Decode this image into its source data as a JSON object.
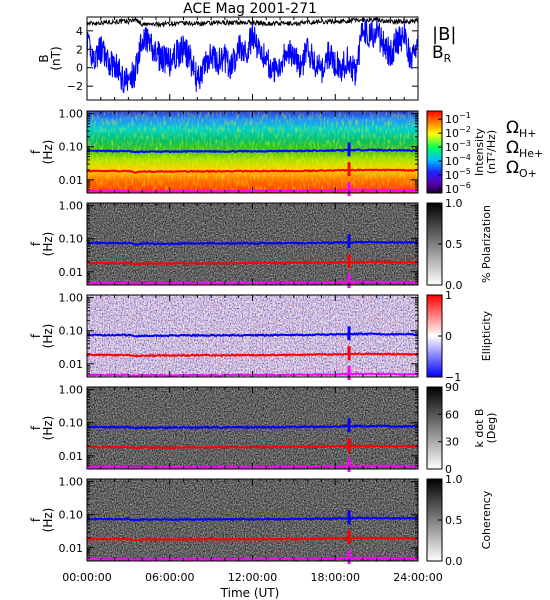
{
  "chart_data": {
    "type": "line",
    "title": "ACE Mag 2001-271",
    "xlabel": "Time (UT)",
    "xticks": [
      "00:00:00",
      "06:00:00",
      "12:00:00",
      "18:00:00",
      "24:00:00"
    ],
    "xlim": [
      0,
      24
    ],
    "mag_panel": {
      "ylabel_top": "B",
      "ylabel_bottom": "(nT)",
      "ylim": [
        -3.5,
        5.5
      ],
      "yticks": [
        "4",
        "2",
        "0",
        "−2"
      ],
      "series": [
        {
          "name": "|B|",
          "color": "#000000",
          "x": [
            0,
            1,
            2,
            3,
            3.5,
            4,
            5,
            6,
            7,
            8,
            9,
            10,
            11,
            12,
            13,
            14,
            15,
            16,
            17,
            18,
            19,
            20,
            21,
            22,
            23,
            24
          ],
          "values": [
            4.8,
            4.9,
            5.0,
            5.0,
            5.3,
            4.7,
            4.7,
            4.8,
            4.8,
            4.8,
            4.8,
            4.9,
            4.9,
            4.9,
            4.8,
            4.8,
            4.8,
            4.9,
            5.0,
            5.0,
            5.1,
            5.2,
            5.2,
            5.0,
            5.0,
            5.1
          ]
        },
        {
          "name": "B",
          "subscript": "R",
          "color": "#0000ff",
          "x": [
            0,
            0.5,
            1,
            1.5,
            2,
            2.5,
            3,
            3.5,
            4,
            4.5,
            5,
            5.5,
            6,
            6.5,
            7,
            7.5,
            8,
            8.5,
            9,
            9.5,
            10,
            10.5,
            11,
            11.5,
            12,
            12.5,
            13,
            13.5,
            14,
            14.5,
            15,
            15.5,
            16,
            16.5,
            17,
            17.5,
            18,
            18.5,
            19,
            19.5,
            20,
            20.5,
            21,
            21.5,
            22,
            22.5,
            23,
            23.5,
            24
          ],
          "values": [
            2.5,
            1.0,
            2.0,
            0.5,
            0.5,
            -1.0,
            -1.5,
            -0.5,
            3.5,
            2.5,
            1.5,
            1.0,
            0.5,
            1.5,
            2.0,
            1.0,
            -1.5,
            0.0,
            1.5,
            0.5,
            1.0,
            0.0,
            2.5,
            1.5,
            3.5,
            2.0,
            1.0,
            -0.5,
            0.5,
            2.0,
            1.0,
            0.0,
            2.0,
            0.5,
            -0.5,
            1.5,
            0.5,
            0.0,
            1.0,
            -1.0,
            4.5,
            3.5,
            4.0,
            2.5,
            1.5,
            3.0,
            3.5,
            1.0,
            2.5
          ]
        }
      ]
    },
    "spectral_panels": [
      {
        "type": "heatmap",
        "colorbar": "rainbow",
        "colorbar_label": "Intensity",
        "colorbar_units": "(nT²/Hz)",
        "colorbar_ticks": [
          {
            "base": "10",
            "exp": "−1",
            "pos": 0.9
          },
          {
            "base": "10",
            "exp": "−2",
            "pos": 0.73
          },
          {
            "base": "10",
            "exp": "−3",
            "pos": 0.56
          },
          {
            "base": "10",
            "exp": "−4",
            "pos": 0.39
          },
          {
            "base": "10",
            "exp": "−5",
            "pos": 0.22
          },
          {
            "base": "10",
            "exp": "−6",
            "pos": 0.05
          }
        ]
      },
      {
        "type": "heatmap",
        "colorbar": "gray",
        "colorbar_label": "% Polarization",
        "colorbar_units": "",
        "colorbar_ticks": [
          {
            "base": "1.0",
            "exp": "",
            "pos": 1.0
          },
          {
            "base": "0.5",
            "exp": "",
            "pos": 0.5
          },
          {
            "base": "0.0",
            "exp": "",
            "pos": 0.0
          }
        ]
      },
      {
        "type": "heatmap",
        "colorbar": "bwr",
        "colorbar_label": "Ellipticity",
        "colorbar_units": "",
        "colorbar_ticks": [
          {
            "base": "1",
            "exp": "",
            "pos": 1.0
          },
          {
            "base": "0",
            "exp": "",
            "pos": 0.5
          },
          {
            "base": "−1",
            "exp": "",
            "pos": 0.0
          }
        ]
      },
      {
        "type": "heatmap",
        "colorbar": "gray",
        "colorbar_label": "k dot B",
        "colorbar_units": "(Deg)",
        "colorbar_ticks": [
          {
            "base": "90",
            "exp": "",
            "pos": 1.0
          },
          {
            "base": "60",
            "exp": "",
            "pos": 0.667
          },
          {
            "base": "30",
            "exp": "",
            "pos": 0.333
          },
          {
            "base": "0",
            "exp": "",
            "pos": 0.0
          }
        ]
      },
      {
        "type": "heatmap",
        "colorbar": "gray",
        "colorbar_label": "Coherency",
        "colorbar_units": "",
        "colorbar_ticks": [
          {
            "base": "1.0",
            "exp": "",
            "pos": 1.0
          },
          {
            "base": "0.5",
            "exp": "",
            "pos": 0.5
          },
          {
            "base": "0.0",
            "exp": "",
            "pos": 0.0
          }
        ]
      }
    ],
    "freq_axis": {
      "ylabel_top": "f",
      "ylabel_bottom": "(Hz)",
      "scale": "log",
      "ylim": [
        0.004,
        1.2
      ],
      "ticks": [
        {
          "label": "1.00",
          "value": 1.0
        },
        {
          "label": "0.10",
          "value": 0.1
        },
        {
          "label": "0.01",
          "value": 0.01
        }
      ]
    },
    "gyrofrequencies": [
      {
        "label": "Ω",
        "subscript": "H+",
        "color": "#0000ff",
        "x": [
          0,
          3,
          3.5,
          4,
          8,
          12,
          16,
          18,
          19,
          20,
          24
        ],
        "values": [
          0.074,
          0.074,
          0.068,
          0.071,
          0.072,
          0.073,
          0.075,
          0.077,
          0.078,
          0.08,
          0.077
        ]
      },
      {
        "label": "Ω",
        "subscript": "He+",
        "color": "#ff0000",
        "x": [
          0,
          3,
          3.5,
          4,
          8,
          12,
          16,
          18,
          19,
          20,
          24
        ],
        "values": [
          0.0185,
          0.0185,
          0.017,
          0.0178,
          0.018,
          0.0183,
          0.0188,
          0.0193,
          0.0195,
          0.02,
          0.0193
        ]
      },
      {
        "label": "Ω",
        "subscript": "O+",
        "color": "#ff00ff",
        "x": [
          0,
          3,
          3.5,
          4,
          8,
          12,
          16,
          18,
          19,
          20,
          24
        ],
        "values": [
          0.0046,
          0.0046,
          0.0043,
          0.0045,
          0.0045,
          0.0046,
          0.0047,
          0.0048,
          0.0049,
          0.005,
          0.0048
        ]
      }
    ]
  }
}
